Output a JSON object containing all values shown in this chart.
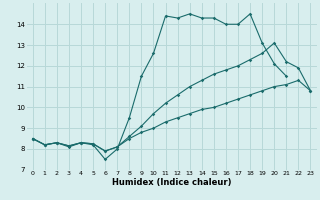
{
  "xlabel": "Humidex (Indice chaleur)",
  "bg_color": "#d8eeee",
  "grid_color": "#b8d8d8",
  "line_color": "#1a6b6b",
  "xlim": [
    -0.5,
    23.5
  ],
  "ylim": [
    7,
    15
  ],
  "yticks": [
    7,
    8,
    9,
    10,
    11,
    12,
    13,
    14
  ],
  "xticks": [
    0,
    1,
    2,
    3,
    4,
    5,
    6,
    7,
    8,
    9,
    10,
    11,
    12,
    13,
    14,
    15,
    16,
    17,
    18,
    19,
    20,
    21,
    22,
    23
  ],
  "line1_x": [
    0,
    1,
    2,
    3,
    4,
    5,
    6,
    7,
    8,
    9,
    10,
    11,
    12,
    13,
    14,
    15,
    16,
    17,
    18,
    19,
    20,
    21
  ],
  "line1_y": [
    8.5,
    8.2,
    8.3,
    8.1,
    8.3,
    8.2,
    7.5,
    8.0,
    9.5,
    11.5,
    12.6,
    14.4,
    14.3,
    14.5,
    14.3,
    14.3,
    14.0,
    14.0,
    14.5,
    13.1,
    12.1,
    11.5
  ],
  "line2_x": [
    0,
    1,
    2,
    3,
    4,
    5,
    6,
    7,
    8,
    9,
    10,
    11,
    12,
    13,
    14,
    15,
    16,
    17,
    18,
    19,
    20,
    21,
    22,
    23
  ],
  "line2_y": [
    8.5,
    8.2,
    8.3,
    8.15,
    8.3,
    8.25,
    7.9,
    8.1,
    8.6,
    9.1,
    9.7,
    10.2,
    10.6,
    11.0,
    11.3,
    11.6,
    11.8,
    12.0,
    12.3,
    12.6,
    13.1,
    12.2,
    11.9,
    10.8
  ],
  "line3_x": [
    0,
    1,
    2,
    3,
    4,
    5,
    6,
    7,
    8,
    9,
    10,
    11,
    12,
    13,
    14,
    15,
    16,
    17,
    18,
    19,
    20,
    21,
    22,
    23
  ],
  "line3_y": [
    8.5,
    8.2,
    8.3,
    8.15,
    8.3,
    8.25,
    7.9,
    8.1,
    8.5,
    8.8,
    9.0,
    9.3,
    9.5,
    9.7,
    9.9,
    10.0,
    10.2,
    10.4,
    10.6,
    10.8,
    11.0,
    11.1,
    11.3,
    10.8
  ]
}
